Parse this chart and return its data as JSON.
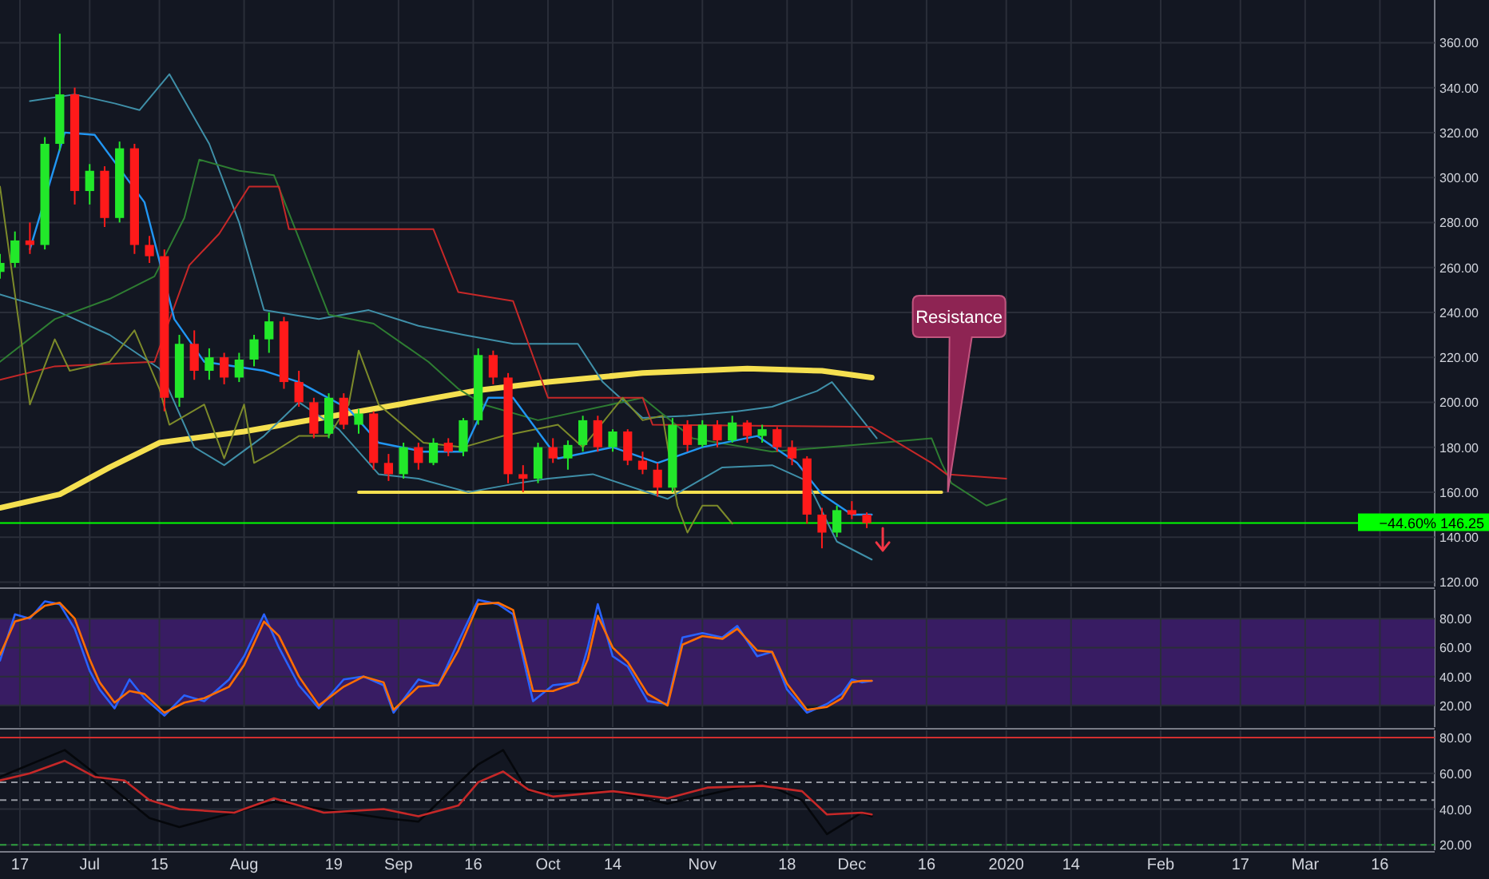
{
  "chart_data": [
    {
      "type": "candlestick",
      "xlim": [
        "2019-06-13",
        "2020-03-27"
      ],
      "ylim": [
        118,
        379
      ],
      "xticks": [
        {
          "value": "2019-06-17",
          "label": null
        },
        {
          "value": "2019-07-01",
          "label": null
        },
        {
          "value": "2019-07-15",
          "label": null
        },
        {
          "value": "2019-08-01",
          "label": null
        },
        {
          "value": "2019-08-19",
          "label": null
        },
        {
          "value": "2019-09-01",
          "label": null
        },
        {
          "value": "2019-09-16",
          "label": null
        },
        {
          "value": "2019-10-01",
          "label": null
        },
        {
          "value": "2019-10-14",
          "label": null
        },
        {
          "value": "2019-11-01",
          "label": null
        },
        {
          "value": "2019-11-18",
          "label": null
        },
        {
          "value": "2019-12-01",
          "label": null
        },
        {
          "value": "2019-12-16",
          "label": null
        },
        {
          "value": "2020-01-01",
          "label": null
        },
        {
          "value": "2020-01-14",
          "label": null
        },
        {
          "value": "2020-02-01",
          "label": null
        },
        {
          "value": "2020-02-17",
          "label": null
        },
        {
          "value": "2020-03-01",
          "label": null
        },
        {
          "value": "2020-03-16",
          "label": null
        }
      ],
      "yticks": [
        {
          "value": 120,
          "label": "120.00"
        },
        {
          "value": 140,
          "label": "140.00"
        },
        {
          "value": 160,
          "label": "160.00"
        },
        {
          "value": 180,
          "label": "180.00"
        },
        {
          "value": 200,
          "label": "200.00"
        },
        {
          "value": 220,
          "label": "220.00"
        },
        {
          "value": 240,
          "label": "240.00"
        },
        {
          "value": 260,
          "label": "260.00"
        },
        {
          "value": 280,
          "label": "280.00"
        },
        {
          "value": 300,
          "label": "300.00"
        },
        {
          "value": 320,
          "label": "320.00"
        },
        {
          "value": 340,
          "label": "340.00"
        },
        {
          "value": 360,
          "label": "360.00"
        }
      ],
      "grid": true,
      "tick_labels": "y",
      "x": [
        "2019-06-13",
        "2019-06-16",
        "2019-06-19",
        "2019-06-22",
        "2019-06-25",
        "2019-06-28",
        "2019-07-01",
        "2019-07-04",
        "2019-07-07",
        "2019-07-10",
        "2019-07-13",
        "2019-07-16",
        "2019-07-19",
        "2019-07-22",
        "2019-07-25",
        "2019-07-28",
        "2019-07-31",
        "2019-08-03",
        "2019-08-06",
        "2019-08-09",
        "2019-08-12",
        "2019-08-15",
        "2019-08-18",
        "2019-08-21",
        "2019-08-24",
        "2019-08-27",
        "2019-08-30",
        "2019-09-02",
        "2019-09-05",
        "2019-09-08",
        "2019-09-11",
        "2019-09-14",
        "2019-09-17",
        "2019-09-20",
        "2019-09-23",
        "2019-09-26",
        "2019-09-29",
        "2019-10-02",
        "2019-10-05",
        "2019-10-08",
        "2019-10-11",
        "2019-10-14",
        "2019-10-17",
        "2019-10-20",
        "2019-10-23",
        "2019-10-26",
        "2019-10-29",
        "2019-11-01",
        "2019-11-04",
        "2019-11-07",
        "2019-11-10",
        "2019-11-13",
        "2019-11-16",
        "2019-11-19",
        "2019-11-22",
        "2019-11-25",
        "2019-11-28",
        "2019-12-01",
        "2019-12-04"
      ],
      "ohlc": [
        [
          258,
          266,
          255,
          262
        ],
        [
          262,
          276,
          260,
          272
        ],
        [
          272,
          280,
          266,
          270
        ],
        [
          270,
          318,
          268,
          315
        ],
        [
          315,
          364,
          312,
          337
        ],
        [
          337,
          340,
          288,
          294
        ],
        [
          294,
          306,
          288,
          303
        ],
        [
          303,
          305,
          278,
          282
        ],
        [
          282,
          316,
          280,
          313
        ],
        [
          313,
          315,
          266,
          270
        ],
        [
          270,
          274,
          262,
          265
        ],
        [
          265,
          268,
          196,
          202
        ],
        [
          202,
          230,
          198,
          226
        ],
        [
          226,
          232,
          210,
          214
        ],
        [
          214,
          224,
          210,
          220
        ],
        [
          220,
          222,
          208,
          211
        ],
        [
          211,
          222,
          209,
          219
        ],
        [
          219,
          230,
          216,
          228
        ],
        [
          228,
          240,
          222,
          236
        ],
        [
          236,
          238,
          206,
          209
        ],
        [
          209,
          214,
          198,
          200
        ],
        [
          200,
          202,
          184,
          186
        ],
        [
          186,
          204,
          184,
          202
        ],
        [
          202,
          204,
          188,
          190
        ],
        [
          190,
          197,
          186,
          195
        ],
        [
          195,
          196,
          170,
          173
        ],
        [
          173,
          177,
          165,
          168
        ],
        [
          168,
          182,
          166,
          180
        ],
        [
          180,
          182,
          170,
          173
        ],
        [
          173,
          184,
          172,
          182
        ],
        [
          182,
          184,
          176,
          178
        ],
        [
          178,
          193,
          176,
          192
        ],
        [
          192,
          224,
          190,
          221
        ],
        [
          221,
          223,
          208,
          211
        ],
        [
          211,
          213,
          164,
          168
        ],
        [
          168,
          172,
          160,
          166
        ],
        [
          166,
          182,
          164,
          180
        ],
        [
          180,
          184,
          173,
          175
        ],
        [
          175,
          183,
          170,
          181
        ],
        [
          181,
          194,
          178,
          192
        ],
        [
          192,
          194,
          178,
          180
        ],
        [
          180,
          188,
          178,
          187
        ],
        [
          187,
          188,
          172,
          174
        ],
        [
          174,
          178,
          168,
          170
        ],
        [
          170,
          173,
          158,
          162
        ],
        [
          162,
          193,
          160,
          190
        ],
        [
          190,
          192,
          178,
          181
        ],
        [
          181,
          192,
          180,
          190
        ],
        [
          190,
          192,
          180,
          183
        ],
        [
          183,
          194,
          182,
          191
        ],
        [
          191,
          192,
          182,
          185
        ],
        [
          185,
          190,
          182,
          188
        ],
        [
          188,
          189,
          178,
          180
        ],
        [
          180,
          183,
          172,
          175
        ],
        [
          175,
          176,
          146,
          150
        ],
        [
          150,
          153,
          135,
          142
        ],
        [
          142,
          154,
          140,
          152
        ],
        [
          152,
          156,
          148,
          150
        ],
        [
          150,
          151,
          144,
          146.25
        ]
      ],
      "colors": [
        "#22e82a",
        "#22e82a",
        "#ff1a1a",
        "#22e82a",
        "#22e82a",
        "#ff1a1a",
        "#22e82a",
        "#ff1a1a",
        "#22e82a",
        "#ff1a1a",
        "#ff1a1a",
        "#ff1a1a",
        "#22e82a",
        "#ff1a1a",
        "#22e82a",
        "#ff1a1a",
        "#22e82a",
        "#22e82a",
        "#22e82a",
        "#ff1a1a",
        "#ff1a1a",
        "#ff1a1a",
        "#22e82a",
        "#ff1a1a",
        "#22e82a",
        "#ff1a1a",
        "#ff1a1a",
        "#22e82a",
        "#ff1a1a",
        "#22e82a",
        "#ff1a1a",
        "#22e82a",
        "#22e82a",
        "#ff1a1a",
        "#ff1a1a",
        "#ff1a1a",
        "#22e82a",
        "#ff1a1a",
        "#22e82a",
        "#22e82a",
        "#ff1a1a",
        "#22e82a",
        "#ff1a1a",
        "#ff1a1a",
        "#ff1a1a",
        "#22e82a",
        "#ff1a1a",
        "#22e82a",
        "#ff1a1a",
        "#22e82a",
        "#ff1a1a",
        "#22e82a",
        "#ff1a1a",
        "#ff1a1a",
        "#ff1a1a",
        "#ff1a1a",
        "#22e82a",
        "#ff1a1a",
        "#ff1a1a"
      ],
      "series": [
        {
          "type": "line",
          "color": "#f5e050",
          "x": [
            "2019-06-13",
            "2019-06-25",
            "2019-07-05",
            "2019-07-15",
            "2019-08-01",
            "2019-09-01",
            "2019-09-16",
            "2019-10-01",
            "2019-10-20",
            "2019-11-10",
            "2019-11-25",
            "2019-12-05"
          ],
          "values": [
            153,
            159,
            171,
            182,
            187,
            199,
            205,
            209,
            213,
            215,
            214,
            211
          ]
        },
        {
          "type": "line",
          "color": "#f5e050",
          "x": [
            "2019-08-24",
            "2019-12-19"
          ],
          "values": [
            160,
            160
          ]
        },
        {
          "type": "line",
          "color": "#3f8fa8",
          "x": [
            "2019-06-19",
            "2019-06-28",
            "2019-07-06",
            "2019-07-11",
            "2019-07-17",
            "2019-07-25",
            "2019-07-31",
            "2019-08-05",
            "2019-08-16",
            "2019-08-26",
            "2019-09-05",
            "2019-09-14",
            "2019-09-24",
            "2019-10-07",
            "2019-10-12",
            "2019-10-20",
            "2019-10-29",
            "2019-11-08",
            "2019-11-15",
            "2019-11-24",
            "2019-11-27",
            "2019-12-01",
            "2019-12-06"
          ],
          "values": [
            334,
            337,
            333,
            330,
            346,
            315,
            280,
            241,
            237,
            241,
            234,
            230,
            226,
            226,
            209,
            193,
            194,
            196,
            198,
            205,
            209,
            198,
            184
          ]
        },
        {
          "type": "line",
          "color": "#3f8fa8",
          "x": [
            "2019-06-13",
            "2019-06-25",
            "2019-07-05",
            "2019-07-15",
            "2019-07-22",
            "2019-07-28",
            "2019-08-05",
            "2019-08-12",
            "2019-08-20",
            "2019-08-28",
            "2019-09-05",
            "2019-09-15",
            "2019-09-25",
            "2019-10-01",
            "2019-10-10",
            "2019-10-25",
            "2019-11-05",
            "2019-11-15",
            "2019-11-22",
            "2019-11-28",
            "2019-12-05"
          ],
          "values": [
            248,
            240,
            230,
            215,
            180,
            172,
            185,
            200,
            188,
            168,
            166,
            160,
            164,
            166,
            168,
            157,
            171,
            172,
            165,
            138,
            130
          ]
        },
        {
          "type": "line",
          "color": "#2e7d32",
          "x": [
            "2019-06-13",
            "2019-06-24",
            "2019-07-05",
            "2019-07-14",
            "2019-07-20",
            "2019-07-23",
            "2019-07-31",
            "2019-08-07",
            "2019-08-12",
            "2019-08-18",
            "2019-08-27",
            "2019-09-07",
            "2019-09-13",
            "2019-09-18",
            "2019-09-29",
            "2019-10-20",
            "2019-10-30",
            "2019-11-15",
            "2019-12-07",
            "2019-12-17",
            "2019-12-19",
            "2019-12-21",
            "2019-12-28",
            "2020-01-01"
          ],
          "values": [
            218,
            237,
            246,
            256,
            282,
            308,
            303,
            301,
            273,
            239,
            235,
            218,
            206,
            199,
            192,
            202,
            184,
            178,
            182,
            184,
            173,
            164,
            154,
            157
          ]
        },
        {
          "type": "line",
          "color": "#c62828",
          "x": [
            "2019-06-13",
            "2019-06-24",
            "2019-07-14",
            "2019-07-21",
            "2019-07-27",
            "2019-08-02",
            "2019-08-08",
            "2019-08-10",
            "2019-09-08",
            "2019-09-13",
            "2019-09-24",
            "2019-10-01",
            "2019-10-20",
            "2019-10-22",
            "2019-12-05",
            "2019-12-17",
            "2019-12-20",
            "2020-01-01"
          ],
          "values": [
            210,
            216,
            218,
            261,
            275,
            296,
            296,
            277,
            277,
            249,
            245,
            202,
            202,
            190,
            189,
            173,
            168,
            166
          ]
        },
        {
          "type": "line",
          "color": "#7c8a2a",
          "x": [
            "2019-06-13",
            "2019-06-17",
            "2019-06-19",
            "2019-06-24",
            "2019-06-27",
            "2019-07-05",
            "2019-07-10",
            "2019-07-15",
            "2019-07-17",
            "2019-07-24",
            "2019-07-28",
            "2019-08-01",
            "2019-08-03",
            "2019-08-07",
            "2019-08-12",
            "2019-08-18",
            "2019-08-22",
            "2019-08-24",
            "2019-08-28",
            "2019-09-06",
            "2019-09-14",
            "2019-09-22",
            "2019-10-03",
            "2019-10-08",
            "2019-10-16",
            "2019-10-20",
            "2019-10-24",
            "2019-10-27",
            "2019-10-29",
            "2019-11-01",
            "2019-11-04",
            "2019-11-07"
          ],
          "values": [
            296,
            232,
            199,
            228,
            214,
            218,
            232,
            206,
            190,
            199,
            175,
            199,
            173,
            178,
            185,
            185,
            199,
            223,
            199,
            182,
            180,
            185,
            190,
            180,
            202,
            192,
            194,
            154,
            142,
            154,
            154,
            146
          ]
        },
        {
          "type": "line",
          "color": "#2196f3",
          "x": [
            "2019-06-19",
            "2019-06-26",
            "2019-07-02",
            "2019-07-08",
            "2019-07-12",
            "2019-07-18",
            "2019-07-24",
            "2019-08-05",
            "2019-08-12",
            "2019-08-22",
            "2019-08-28",
            "2019-09-06",
            "2019-09-14",
            "2019-09-19",
            "2019-09-24",
            "2019-10-03",
            "2019-10-14",
            "2019-10-23",
            "2019-11-01",
            "2019-11-12",
            "2019-11-20",
            "2019-11-25",
            "2019-12-01",
            "2019-12-05"
          ],
          "values": [
            268,
            320,
            319,
            301,
            289,
            237,
            218,
            214,
            209,
            197,
            182,
            178,
            178,
            202,
            202,
            175,
            180,
            173,
            180,
            185,
            173,
            159,
            150,
            150
          ]
        }
      ],
      "ref_lines": [
        {
          "axis": "y",
          "value": 146.25,
          "label": "−44.60% 146.25",
          "color": "#00ff00"
        }
      ],
      "annotations": [
        "Resistance"
      ]
    },
    {
      "type": "line",
      "xlim": [
        "2019-06-13",
        "2020-03-27"
      ],
      "ylim": [
        5,
        100
      ],
      "grid": true,
      "tick_labels": "y",
      "xticks": [
        {
          "value": "2019-06-17",
          "label": null
        },
        {
          "value": "2019-07-01",
          "label": null
        },
        {
          "value": "2019-07-15",
          "label": null
        },
        {
          "value": "2019-08-01",
          "label": null
        },
        {
          "value": "2019-08-19",
          "label": null
        },
        {
          "value": "2019-09-01",
          "label": null
        },
        {
          "value": "2019-09-16",
          "label": null
        },
        {
          "value": "2019-10-01",
          "label": null
        },
        {
          "value": "2019-10-14",
          "label": null
        },
        {
          "value": "2019-11-01",
          "label": null
        },
        {
          "value": "2019-11-18",
          "label": null
        },
        {
          "value": "2019-12-01",
          "label": null
        },
        {
          "value": "2019-12-16",
          "label": null
        },
        {
          "value": "2020-01-01",
          "label": null
        },
        {
          "value": "2020-01-14",
          "label": null
        },
        {
          "value": "2020-02-01",
          "label": null
        },
        {
          "value": "2020-02-17",
          "label": null
        },
        {
          "value": "2020-03-01",
          "label": null
        },
        {
          "value": "2020-03-16",
          "label": null
        }
      ],
      "yticks": [
        {
          "value": 20,
          "label": "20.00"
        },
        {
          "value": 40,
          "label": "40.00"
        },
        {
          "value": 60,
          "label": "60.00"
        },
        {
          "value": 80,
          "label": "80.00"
        }
      ],
      "bands": [
        {
          "axis": "y",
          "from": 20,
          "to": 80,
          "color": "#3f1d6e"
        }
      ],
      "x": [
        "2019-06-13",
        "2019-06-16",
        "2019-06-19",
        "2019-06-22",
        "2019-06-25",
        "2019-06-28",
        "2019-07-01",
        "2019-07-03",
        "2019-07-06",
        "2019-07-09",
        "2019-07-12",
        "2019-07-16",
        "2019-07-20",
        "2019-07-24",
        "2019-07-29",
        "2019-08-01",
        "2019-08-05",
        "2019-08-08",
        "2019-08-12",
        "2019-08-16",
        "2019-08-21",
        "2019-08-25",
        "2019-08-29",
        "2019-08-31",
        "2019-09-05",
        "2019-09-09",
        "2019-09-13",
        "2019-09-17",
        "2019-09-21",
        "2019-09-24",
        "2019-09-28",
        "2019-10-02",
        "2019-10-07",
        "2019-10-09",
        "2019-10-11",
        "2019-10-14",
        "2019-10-17",
        "2019-10-21",
        "2019-10-25",
        "2019-10-28",
        "2019-11-01",
        "2019-11-05",
        "2019-11-08",
        "2019-11-12",
        "2019-11-15",
        "2019-11-18",
        "2019-11-22",
        "2019-11-26",
        "2019-11-29",
        "2019-12-01",
        "2019-12-03",
        "2019-12-05"
      ],
      "series": [
        {
          "color": "#2962ff",
          "values": [
            51,
            83,
            80,
            92,
            90,
            73,
            44,
            31,
            18,
            38,
            25,
            13,
            27,
            23,
            38,
            54,
            83,
            60,
            34,
            18,
            38,
            40,
            34,
            15,
            38,
            34,
            64,
            93,
            90,
            83,
            23,
            34,
            36,
            60,
            90,
            54,
            47,
            23,
            21,
            67,
            70,
            67,
            75,
            54,
            57,
            31,
            15,
            21,
            28,
            38,
            36,
            37
          ]
        },
        {
          "color": "#ff6d00",
          "values": [
            55,
            78,
            81,
            89,
            91,
            80,
            52,
            36,
            22,
            30,
            28,
            15,
            22,
            25,
            33,
            48,
            78,
            68,
            40,
            20,
            33,
            40,
            36,
            17,
            33,
            34,
            58,
            90,
            91,
            86,
            30,
            30,
            36,
            52,
            82,
            60,
            50,
            28,
            20,
            62,
            68,
            66,
            73,
            58,
            57,
            35,
            17,
            19,
            25,
            36,
            37,
            37
          ]
        }
      ]
    },
    {
      "type": "line",
      "xlim": [
        "2019-06-13",
        "2020-03-27"
      ],
      "ylim": [
        17,
        84
      ],
      "grid": true,
      "xticks": [
        {
          "value": "2019-06-17",
          "label": "17"
        },
        {
          "value": "2019-07-01",
          "label": "Jul"
        },
        {
          "value": "2019-07-15",
          "label": "15"
        },
        {
          "value": "2019-08-01",
          "label": "Aug"
        },
        {
          "value": "2019-08-19",
          "label": "19"
        },
        {
          "value": "2019-09-01",
          "label": "Sep"
        },
        {
          "value": "2019-09-16",
          "label": "16"
        },
        {
          "value": "2019-10-01",
          "label": "Oct"
        },
        {
          "value": "2019-10-14",
          "label": "14"
        },
        {
          "value": "2019-11-01",
          "label": "Nov"
        },
        {
          "value": "2019-11-18",
          "label": "18"
        },
        {
          "value": "2019-12-01",
          "label": "Dec"
        },
        {
          "value": "2019-12-16",
          "label": "16"
        },
        {
          "value": "2020-01-01",
          "label": "2020"
        },
        {
          "value": "2020-01-14",
          "label": "14"
        },
        {
          "value": "2020-02-01",
          "label": "Feb"
        },
        {
          "value": "2020-02-17",
          "label": "17"
        },
        {
          "value": "2020-03-01",
          "label": "Mar"
        },
        {
          "value": "2020-03-16",
          "label": "16"
        }
      ],
      "yticks": [
        {
          "value": 20,
          "label": "20.00"
        },
        {
          "value": 40,
          "label": "40.00"
        },
        {
          "value": 60,
          "label": "60.00"
        },
        {
          "value": 80,
          "label": "80.00"
        }
      ],
      "ref_lines": [
        {
          "axis": "y",
          "value": 80,
          "color": "#d32f2f"
        },
        {
          "axis": "y",
          "value": 55,
          "color": "#9598a1",
          "line_style": "dashed"
        },
        {
          "axis": "y",
          "value": 45,
          "color": "#9598a1",
          "line_style": "dashed"
        },
        {
          "axis": "y",
          "value": 20,
          "color": "#2e9e3e",
          "line_style": "dashed"
        }
      ],
      "series": [
        {
          "color": "#05070b",
          "x": [
            "2019-06-13",
            "2019-06-26",
            "2019-07-02",
            "2019-07-13",
            "2019-07-19",
            "2019-08-07",
            "2019-08-29",
            "2019-09-05",
            "2019-09-17",
            "2019-09-22",
            "2019-09-27",
            "2019-10-14",
            "2019-10-25",
            "2019-11-13",
            "2019-11-21",
            "2019-11-26",
            "2019-12-03",
            "2019-12-05"
          ],
          "values": [
            58,
            73,
            60,
            35,
            30,
            44,
            35,
            33,
            65,
            73,
            50,
            50,
            43,
            55,
            45,
            26,
            38,
            36
          ]
        },
        {
          "color": "#c62828",
          "x": [
            "2019-06-13",
            "2019-06-19",
            "2019-06-26",
            "2019-07-02",
            "2019-07-08",
            "2019-07-13",
            "2019-07-19",
            "2019-07-30",
            "2019-08-07",
            "2019-08-17",
            "2019-08-29",
            "2019-09-05",
            "2019-09-13",
            "2019-09-17",
            "2019-09-22",
            "2019-09-27",
            "2019-10-02",
            "2019-10-14",
            "2019-10-25",
            "2019-11-02",
            "2019-11-13",
            "2019-11-21",
            "2019-11-26",
            "2019-12-03",
            "2019-12-05"
          ],
          "values": [
            56,
            60,
            67,
            58,
            56,
            45,
            40,
            38,
            46,
            38,
            40,
            36,
            42,
            55,
            61,
            51,
            47,
            50,
            46,
            52,
            53,
            50,
            37,
            38,
            37
          ]
        }
      ]
    }
  ]
}
